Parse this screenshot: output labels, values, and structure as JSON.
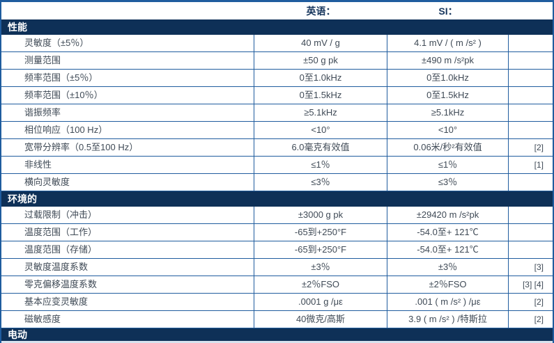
{
  "table": {
    "columns": {
      "english_header": "英语：",
      "si_header": "SI："
    },
    "colors": {
      "section_bar": "#0e3057",
      "grid_line": "#1f5c9e",
      "header_text": "#17365d",
      "body_text": "#3f4a56"
    },
    "sections": [
      {
        "title": "性能",
        "rows": [
          {
            "label": "灵敏度（±5％）",
            "english": "40 mV / g",
            "si": "4.1 mV / ( m /s² )",
            "note": ""
          },
          {
            "label": "测量范围",
            "english": "±50 g pk",
            "si": "±490 m /s²pk",
            "note": ""
          },
          {
            "label": "频率范围（±5％）",
            "english": "0至1.0kHz",
            "si": "0至1.0kHz",
            "note": ""
          },
          {
            "label": "频率范围（±10％）",
            "english": "0至1.5kHz",
            "si": "0至1.5kHz",
            "note": ""
          },
          {
            "label": "谐振频率",
            "english": "≥5.1kHz",
            "si": "≥5.1kHz",
            "note": ""
          },
          {
            "label": "相位响应（100 Hz）",
            "english": "<10°",
            "si": "<10°",
            "note": ""
          },
          {
            "label": "宽带分辨率（0.5至100 Hz）",
            "english": "6.0毫克有效值",
            "si": "0.06米/秒²有效值",
            "note": "[2]"
          },
          {
            "label": "非线性",
            "english": "≤1％",
            "si": "≤1％",
            "note": "[1]"
          },
          {
            "label": "横向灵敏度",
            "english": "≤3％",
            "si": "≤3％",
            "note": ""
          }
        ]
      },
      {
        "title": "环境的",
        "rows": [
          {
            "label": "过载限制（冲击）",
            "english": "±3000 g pk",
            "si": "±29420 m /s²pk",
            "note": ""
          },
          {
            "label": "温度范围（工作）",
            "english": "-65到+250°F",
            "si": "-54.0至+ 121℃",
            "note": ""
          },
          {
            "label": "温度范围（存储）",
            "english": "-65到+250°F",
            "si": "-54.0至+ 121℃",
            "note": ""
          },
          {
            "label": "灵敏度温度系数",
            "english": "±3％",
            "si": "±3％",
            "note": "[3]"
          },
          {
            "label": "零克偏移温度系数",
            "english": "±2％FSO",
            "si": "±2％FSO",
            "note": "[3] [4]"
          },
          {
            "label": "基本应变灵敏度",
            "english": ".0001 g /με",
            "si": ".001 ( m /s² ) /με",
            "note": "[2]"
          },
          {
            "label": "磁敏感度",
            "english": "40微克/高斯",
            "si": "3.9 ( m /s² ) /特斯拉",
            "note": "[2]"
          }
        ]
      },
      {
        "title": "电动",
        "rows": []
      }
    ]
  }
}
